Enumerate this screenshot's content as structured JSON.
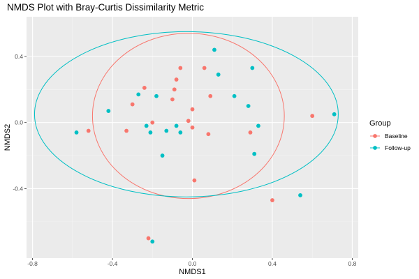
{
  "chart_data": {
    "type": "scatter",
    "title": "NMDS Plot with Bray-Curtis Dissimilarity Metric",
    "xlabel": "NMDS1",
    "ylabel": "NMDS2",
    "xlim": [
      -0.83,
      0.83
    ],
    "ylim": [
      -0.82,
      0.64
    ],
    "xticks": [
      -0.8,
      -0.4,
      0.0,
      0.4,
      0.8
    ],
    "xtick_labels": [
      "-0.8",
      "-0.4",
      "0.0",
      "0.4",
      "0.8"
    ],
    "yticks": [
      -0.4,
      0.0,
      0.4
    ],
    "ytick_labels": [
      "-0.4",
      "0.0",
      "0.4"
    ],
    "grid": true,
    "legend": {
      "title": "Group",
      "placement": "right"
    },
    "series": [
      {
        "name": "Baseline",
        "color": "#F8766D",
        "points": [
          {
            "x": -0.52,
            "y": -0.05
          },
          {
            "x": -0.33,
            "y": -0.05
          },
          {
            "x": -0.3,
            "y": 0.11
          },
          {
            "x": -0.24,
            "y": 0.21
          },
          {
            "x": -0.2,
            "y": 0.0
          },
          {
            "x": -0.22,
            "y": -0.7
          },
          {
            "x": -0.09,
            "y": 0.2
          },
          {
            "x": -0.08,
            "y": 0.26
          },
          {
            "x": -0.1,
            "y": 0.14
          },
          {
            "x": -0.06,
            "y": 0.33
          },
          {
            "x": -0.02,
            "y": 0.01
          },
          {
            "x": 0.0,
            "y": 0.08
          },
          {
            "x": 0.0,
            "y": -0.03
          },
          {
            "x": 0.01,
            "y": -0.35
          },
          {
            "x": 0.06,
            "y": 0.33
          },
          {
            "x": 0.08,
            "y": -0.07
          },
          {
            "x": 0.09,
            "y": 0.16
          },
          {
            "x": 0.29,
            "y": -0.06
          },
          {
            "x": 0.4,
            "y": -0.47
          },
          {
            "x": 0.6,
            "y": 0.04
          }
        ]
      },
      {
        "name": "Follow-up",
        "color": "#00BFC4",
        "points": [
          {
            "x": -0.58,
            "y": -0.06
          },
          {
            "x": -0.42,
            "y": 0.07
          },
          {
            "x": -0.27,
            "y": 0.17
          },
          {
            "x": -0.23,
            "y": -0.02
          },
          {
            "x": -0.21,
            "y": -0.06
          },
          {
            "x": -0.18,
            "y": 0.16
          },
          {
            "x": -0.15,
            "y": -0.2
          },
          {
            "x": -0.13,
            "y": -0.05
          },
          {
            "x": -0.08,
            "y": -0.02
          },
          {
            "x": -0.06,
            "y": -0.06
          },
          {
            "x": -0.2,
            "y": -0.72
          },
          {
            "x": 0.11,
            "y": 0.44
          },
          {
            "x": 0.13,
            "y": 0.29
          },
          {
            "x": 0.21,
            "y": 0.16
          },
          {
            "x": 0.28,
            "y": 0.1
          },
          {
            "x": 0.3,
            "y": 0.33
          },
          {
            "x": 0.31,
            "y": -0.19
          },
          {
            "x": 0.33,
            "y": -0.02
          },
          {
            "x": 0.54,
            "y": -0.44
          },
          {
            "x": 0.71,
            "y": 0.05
          }
        ]
      }
    ],
    "ellipses": [
      {
        "group": "Baseline",
        "color": "#F8766D",
        "center": [
          -0.02,
          0.04
        ],
        "radii": [
          0.48,
          0.5
        ]
      },
      {
        "group": "Follow-up",
        "color": "#00BFC4",
        "center": [
          -0.03,
          0.05
        ],
        "radii": [
          0.76,
          0.5
        ]
      }
    ]
  }
}
